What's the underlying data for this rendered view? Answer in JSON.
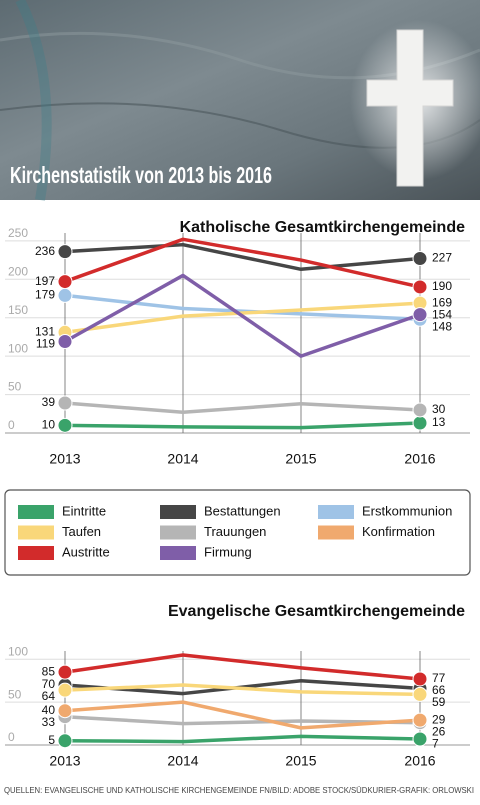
{
  "header": {
    "title": "Kirchenstatistik von 2013 bis 2016"
  },
  "chart_data": [
    {
      "type": "line",
      "title": "Katholische Gesamtkirchengemeinde",
      "categories": [
        "2013",
        "2014",
        "2015",
        "2016"
      ],
      "ylim": [
        0,
        255
      ],
      "yticks": [
        0,
        50,
        100,
        150,
        200,
        250
      ],
      "grid": true,
      "series": [
        {
          "name": "Eintritte",
          "color": "#3aa36a",
          "values": [
            10,
            8,
            7,
            13
          ]
        },
        {
          "name": "Bestattungen",
          "color": "#464646",
          "values": [
            236,
            245,
            213,
            227
          ]
        },
        {
          "name": "Erstkommunion",
          "color": "#9fc3e6",
          "values": [
            179,
            162,
            155,
            148
          ]
        },
        {
          "name": "Taufen",
          "color": "#f9d77a",
          "values": [
            131,
            152,
            160,
            169
          ]
        },
        {
          "name": "Trauungen",
          "color": "#b5b5b5",
          "values": [
            39,
            27,
            38,
            30
          ]
        },
        {
          "name": "Austritte",
          "color": "#d22b2b",
          "values": [
            197,
            252,
            225,
            190
          ]
        },
        {
          "name": "Firmung",
          "color": "#7f5ea8",
          "values": [
            119,
            205,
            100,
            154
          ]
        }
      ]
    },
    {
      "type": "line",
      "title": "Evangelische Gesamtkirchengemeinde",
      "categories": [
        "2013",
        "2014",
        "2015",
        "2016"
      ],
      "ylim": [
        0,
        105
      ],
      "yticks": [
        0,
        50,
        100
      ],
      "grid": true,
      "series": [
        {
          "name": "Eintritte",
          "color": "#3aa36a",
          "values": [
            5,
            4,
            10,
            7
          ]
        },
        {
          "name": "Bestattungen",
          "color": "#464646",
          "values": [
            70,
            60,
            75,
            66
          ]
        },
        {
          "name": "Taufen",
          "color": "#f9d77a",
          "values": [
            64,
            70,
            62,
            59
          ]
        },
        {
          "name": "Trauungen",
          "color": "#b5b5b5",
          "values": [
            33,
            25,
            28,
            26
          ]
        },
        {
          "name": "Konfirmation",
          "color": "#f0a96e",
          "values": [
            40,
            50,
            20,
            29
          ]
        },
        {
          "name": "Austritte",
          "color": "#d22b2b",
          "values": [
            85,
            105,
            90,
            77
          ]
        }
      ]
    }
  ],
  "legend": [
    {
      "name": "Eintritte",
      "color": "#3aa36a"
    },
    {
      "name": "Bestattungen",
      "color": "#464646"
    },
    {
      "name": "Erstkommunion",
      "color": "#9fc3e6"
    },
    {
      "name": "Taufen",
      "color": "#f9d77a"
    },
    {
      "name": "Trauungen",
      "color": "#b5b5b5"
    },
    {
      "name": "Konfirmation",
      "color": "#f0a96e"
    },
    {
      "name": "Austritte",
      "color": "#d22b2b"
    },
    {
      "name": "Firmung",
      "color": "#7f5ea8"
    }
  ],
  "source": "QUELLEN: EVANGELISCHE UND KATHOLISCHE KIRCHENGEMEINDE FN/BILD: ADOBE STOCK/SÜDKURIER-GRAFIK: ORLOWSKI"
}
